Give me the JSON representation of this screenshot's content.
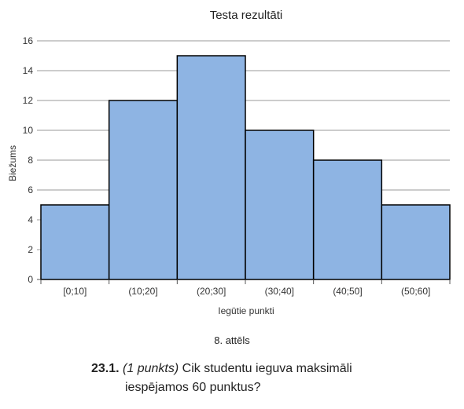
{
  "chart_data": {
    "type": "bar",
    "title": "Testa rezultāti",
    "xlabel": "Iegūtie punkti",
    "ylabel": "Biežums",
    "categories": [
      "[0;10]",
      "(10;20]",
      "(20;30]",
      "(30;40]",
      "(40;50]",
      "(50;60]"
    ],
    "values": [
      5,
      12,
      15,
      10,
      8,
      5
    ],
    "ylim": [
      0,
      16
    ],
    "yticks": [
      0,
      2,
      4,
      6,
      8,
      10,
      12,
      14,
      16
    ],
    "grid": "horizontal",
    "bar_color": "#8eb4e3",
    "bar_edge_color": "#000000"
  },
  "caption": "8. attēls",
  "question": {
    "number": "23.1.",
    "points": "(1 punkts)",
    "text_line1": "Cik studentu ieguva maksimāli",
    "text_line2": "iespējamos 60 punktus?"
  }
}
